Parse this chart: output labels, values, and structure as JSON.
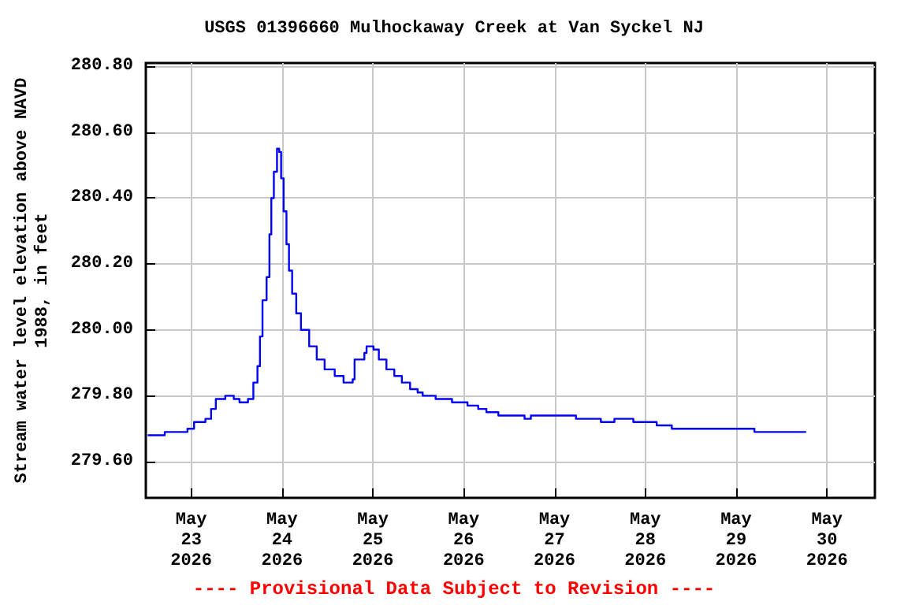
{
  "chart_data": {
    "type": "step",
    "title": "USGS 01396660 Mulhockaway Creek at Van Syckel NJ",
    "ylabel": "Stream water level elevation above NAVD\n1988, in feet",
    "annotations": [
      "---- Provisional Data Subject to Revision ----"
    ],
    "x": [
      "2026-05-22T12:30",
      "2026-05-22T17:00",
      "2026-05-22T23:00",
      "2026-05-23T00:45",
      "2026-05-23T03:45",
      "2026-05-23T05:15",
      "2026-05-23T06:30",
      "2026-05-23T09:00",
      "2026-05-23T11:15",
      "2026-05-23T12:45",
      "2026-05-23T15:00",
      "2026-05-23T16:25",
      "2026-05-23T17:30",
      "2026-05-23T18:10",
      "2026-05-23T18:50",
      "2026-05-23T19:55",
      "2026-05-23T20:40",
      "2026-05-23T21:10",
      "2026-05-23T21:50",
      "2026-05-23T22:40",
      "2026-05-23T23:15",
      "2026-05-23T23:45",
      "2026-05-24T00:25",
      "2026-05-24T01:10",
      "2026-05-24T01:50",
      "2026-05-24T02:40",
      "2026-05-24T03:45",
      "2026-05-24T05:00",
      "2026-05-24T07:10",
      "2026-05-24T09:10",
      "2026-05-24T11:15",
      "2026-05-24T13:55",
      "2026-05-24T16:15",
      "2026-05-24T18:40",
      "2026-05-24T19:10",
      "2026-05-24T21:45",
      "2026-05-24T22:20",
      "2026-05-25T00:10",
      "2026-05-25T01:35",
      "2026-05-25T03:35",
      "2026-05-25T05:40",
      "2026-05-25T07:40",
      "2026-05-25T09:50",
      "2026-05-25T11:50",
      "2026-05-25T13:10",
      "2026-05-25T16:35",
      "2026-05-25T20:55",
      "2026-05-26T01:00",
      "2026-05-26T03:50",
      "2026-05-26T06:00",
      "2026-05-26T09:10",
      "2026-05-26T16:05",
      "2026-05-26T17:45",
      "2026-05-27T05:40",
      "2026-05-27T12:15",
      "2026-05-27T15:50",
      "2026-05-27T20:50",
      "2026-05-28T03:00",
      "2026-05-28T07:00",
      "2026-05-29T04:50",
      "2026-05-29T18:30"
    ],
    "series": [
      {
        "color": "#0000ff",
        "values": [
          279.68,
          279.69,
          279.7,
          279.72,
          279.73,
          279.76,
          279.79,
          279.8,
          279.79,
          279.78,
          279.79,
          279.84,
          279.89,
          279.98,
          280.09,
          280.16,
          280.29,
          280.4,
          280.48,
          280.55,
          280.54,
          280.46,
          280.36,
          280.26,
          280.18,
          280.11,
          280.05,
          280.0,
          279.95,
          279.91,
          279.88,
          279.86,
          279.84,
          279.85,
          279.91,
          279.93,
          279.95,
          279.94,
          279.91,
          279.88,
          279.86,
          279.84,
          279.82,
          279.81,
          279.8,
          279.79,
          279.78,
          279.77,
          279.76,
          279.75,
          279.74,
          279.73,
          279.74,
          279.73,
          279.72,
          279.73,
          279.72,
          279.71,
          279.7,
          279.69,
          279.69
        ]
      }
    ],
    "xlim": [
      "2026-05-22T12:00",
      "2026-05-30T12:40"
    ],
    "xticks": [
      {
        "value": "2026-05-23",
        "label": "May\n23\n2026"
      },
      {
        "value": "2026-05-24",
        "label": "May\n24\n2026"
      },
      {
        "value": "2026-05-25",
        "label": "May\n25\n2026"
      },
      {
        "value": "2026-05-26",
        "label": "May\n26\n2026"
      },
      {
        "value": "2026-05-27",
        "label": "May\n27\n2026"
      },
      {
        "value": "2026-05-28",
        "label": "May\n28\n2026"
      },
      {
        "value": "2026-05-29",
        "label": "May\n29\n2026"
      },
      {
        "value": "2026-05-30",
        "label": "May\n30\n2026"
      }
    ],
    "ylim": [
      279.49,
      280.81
    ],
    "yticks": [
      {
        "value": 279.6,
        "label": "279.60"
      },
      {
        "value": 279.8,
        "label": "279.80"
      },
      {
        "value": 280.0,
        "label": "280.00"
      },
      {
        "value": 280.2,
        "label": "280.20"
      },
      {
        "value": 280.4,
        "label": "280.40"
      },
      {
        "value": 280.6,
        "label": "280.60"
      },
      {
        "value": 280.8,
        "label": "280.80"
      }
    ],
    "grid": true,
    "line_style": "solid",
    "marker": "none"
  }
}
